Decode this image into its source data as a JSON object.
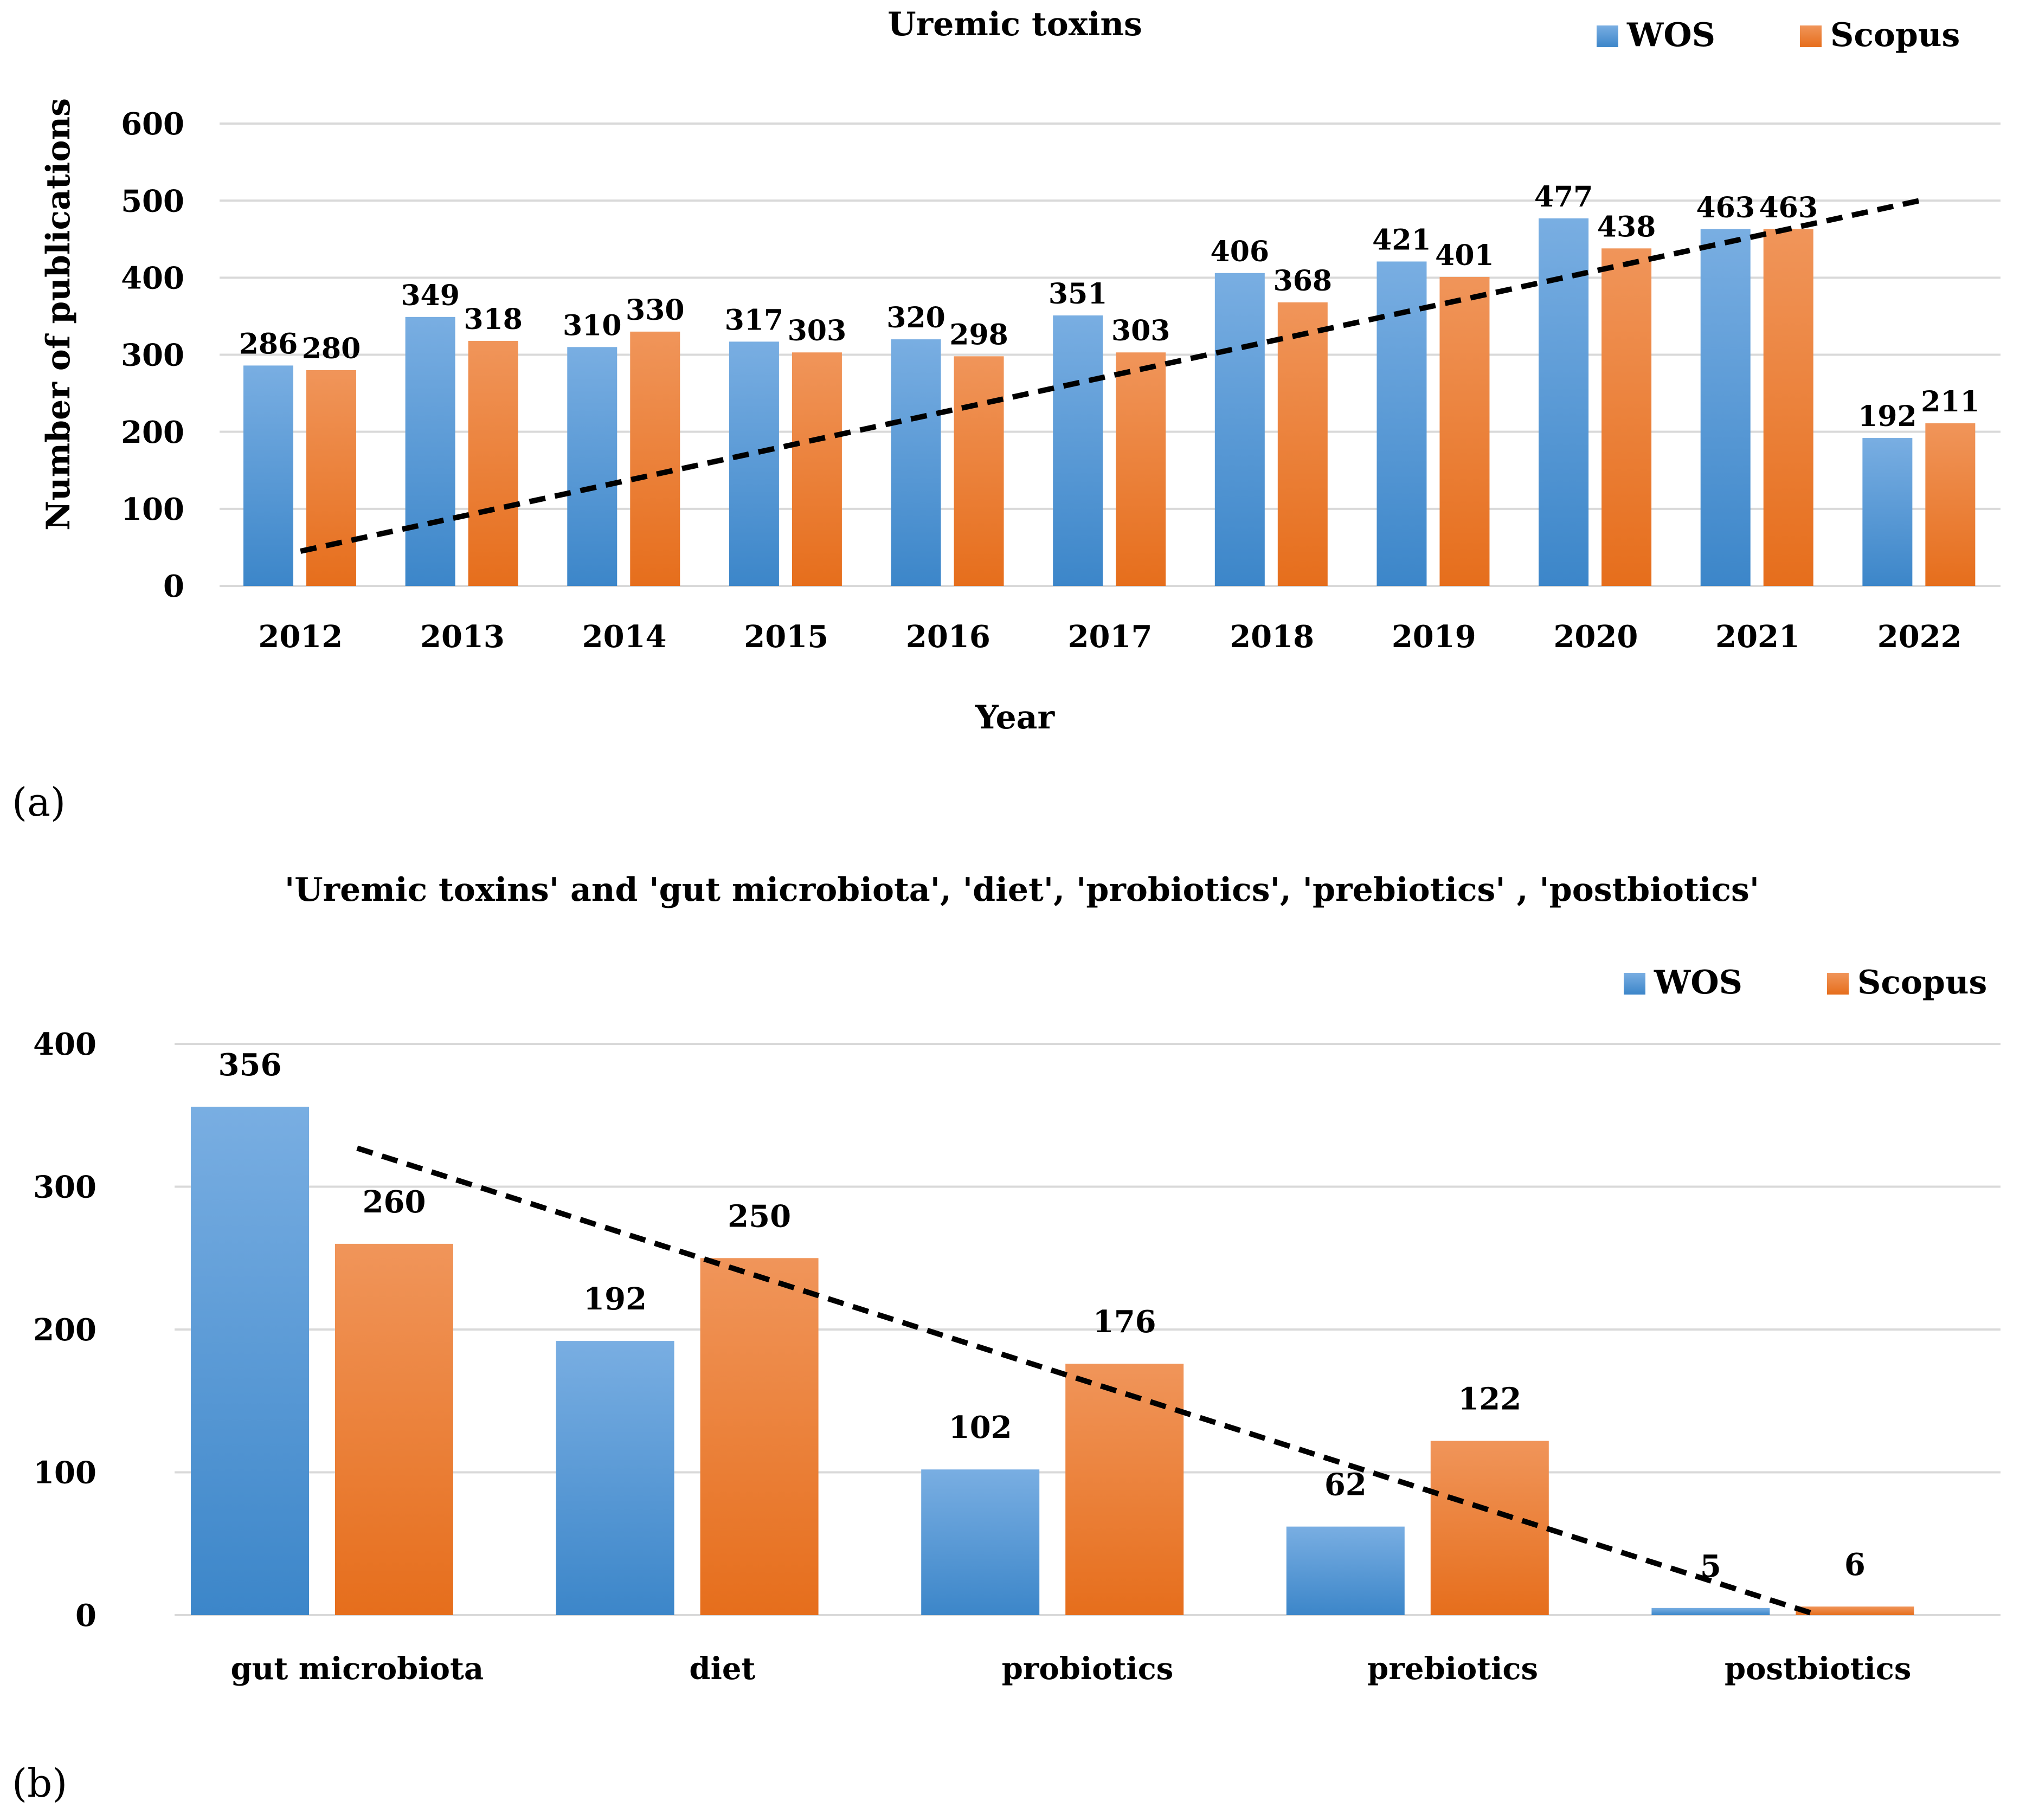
{
  "chart_data": [
    {
      "type": "bar",
      "panel_label": "(a)",
      "title": "Uremic toxins",
      "xlabel": "Year",
      "ylabel": "Number of publications",
      "ylim": [
        0,
        600
      ],
      "yticks": [
        0,
        100,
        200,
        300,
        400,
        500,
        600
      ],
      "grid": true,
      "legend_position": "top-right",
      "categories": [
        "2012",
        "2013",
        "2014",
        "2015",
        "2016",
        "2017",
        "2018",
        "2019",
        "2020",
        "2021",
        "2022"
      ],
      "series": [
        {
          "name": "WOS",
          "values": [
            286,
            349,
            310,
            317,
            320,
            351,
            406,
            421,
            477,
            463,
            192
          ]
        },
        {
          "name": "Scopus",
          "values": [
            280,
            318,
            330,
            303,
            298,
            303,
            368,
            401,
            438,
            463,
            211
          ]
        }
      ],
      "trendline": {
        "style": "dashed",
        "from": {
          "category": "2012",
          "value": 45
        },
        "to": {
          "category": "2022",
          "value": 500
        }
      }
    },
    {
      "type": "bar",
      "panel_label": "(b)",
      "title": "'Uremic toxins' and 'gut microbiota', 'diet', 'probiotics', 'prebiotics' , 'postbiotics'",
      "xlabel": "",
      "ylabel": "",
      "ylim": [
        0,
        400
      ],
      "yticks": [
        0,
        100,
        200,
        300,
        400
      ],
      "grid": true,
      "legend_position": "top-right",
      "categories": [
        "gut microbiota",
        "diet",
        "probiotics",
        "prebiotics",
        "postbiotics"
      ],
      "series": [
        {
          "name": "WOS",
          "values": [
            356,
            192,
            102,
            62,
            5
          ]
        },
        {
          "name": "Scopus",
          "values": [
            260,
            250,
            176,
            122,
            6
          ]
        }
      ],
      "trendline": {
        "style": "dashed",
        "from": {
          "category": "gut microbiota",
          "value": 327
        },
        "to": {
          "category": "postbiotics",
          "value": 0
        }
      }
    }
  ],
  "colors": {
    "wos_top": "#79aee2",
    "wos_bottom": "#3c86c9",
    "scopus_top": "#f0955a",
    "scopus_bottom": "#e66e1c",
    "grid": "#d9d9d9",
    "trend": "#000000"
  }
}
